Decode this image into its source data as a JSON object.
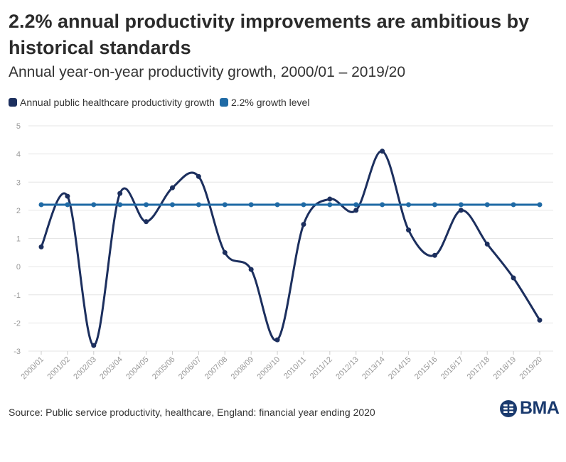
{
  "header": {
    "title": "2.2% annual productivity improvements are ambitious by historical standards",
    "subtitle": "Annual year-on-year productivity growth, 2000/01 – 2019/20"
  },
  "footer": {
    "source": "Source: Public service productivity, healthcare, England: financial year ending 2020",
    "logo_text": "BMA"
  },
  "colors": {
    "series_main": "#1c2f5e",
    "series_level": "#1f6aa5",
    "grid": "#e6e6e6",
    "tick_text": "#999999"
  },
  "chart_data": {
    "type": "line",
    "title": "2.2% annual productivity improvements are ambitious by historical standards",
    "subtitle": "Annual year-on-year productivity growth, 2000/01 – 2019/20",
    "categories": [
      "2000/01",
      "2001/02",
      "2002/03",
      "2003/04",
      "2004/05",
      "2005/06",
      "2006/07",
      "2007/08",
      "2008/09",
      "2009/10",
      "2010/11",
      "2011/12",
      "2012/13",
      "2013/14",
      "2014/15",
      "2015/16",
      "2016/17",
      "2017/18",
      "2018/19",
      "2019/20"
    ],
    "series": [
      {
        "name": "Annual public healthcare productivity growth",
        "color": "#1c2f5e",
        "smooth": true,
        "values": [
          0.7,
          2.5,
          -2.8,
          2.6,
          1.6,
          2.8,
          3.2,
          0.5,
          -0.1,
          -2.6,
          1.5,
          2.4,
          2.0,
          4.1,
          1.3,
          0.4,
          2.0,
          0.8,
          -0.4,
          -1.9
        ]
      },
      {
        "name": "2.2% growth level",
        "color": "#1f6aa5",
        "smooth": false,
        "values": [
          2.2,
          2.2,
          2.2,
          2.2,
          2.2,
          2.2,
          2.2,
          2.2,
          2.2,
          2.2,
          2.2,
          2.2,
          2.2,
          2.2,
          2.2,
          2.2,
          2.2,
          2.2,
          2.2,
          2.2
        ]
      }
    ],
    "y_ticks": [
      "5",
      "4",
      "3",
      "2",
      "1",
      "0",
      "-1",
      "-2",
      "-3"
    ],
    "ylim": [
      -3,
      5
    ],
    "grid": true,
    "legend": "top-left"
  }
}
